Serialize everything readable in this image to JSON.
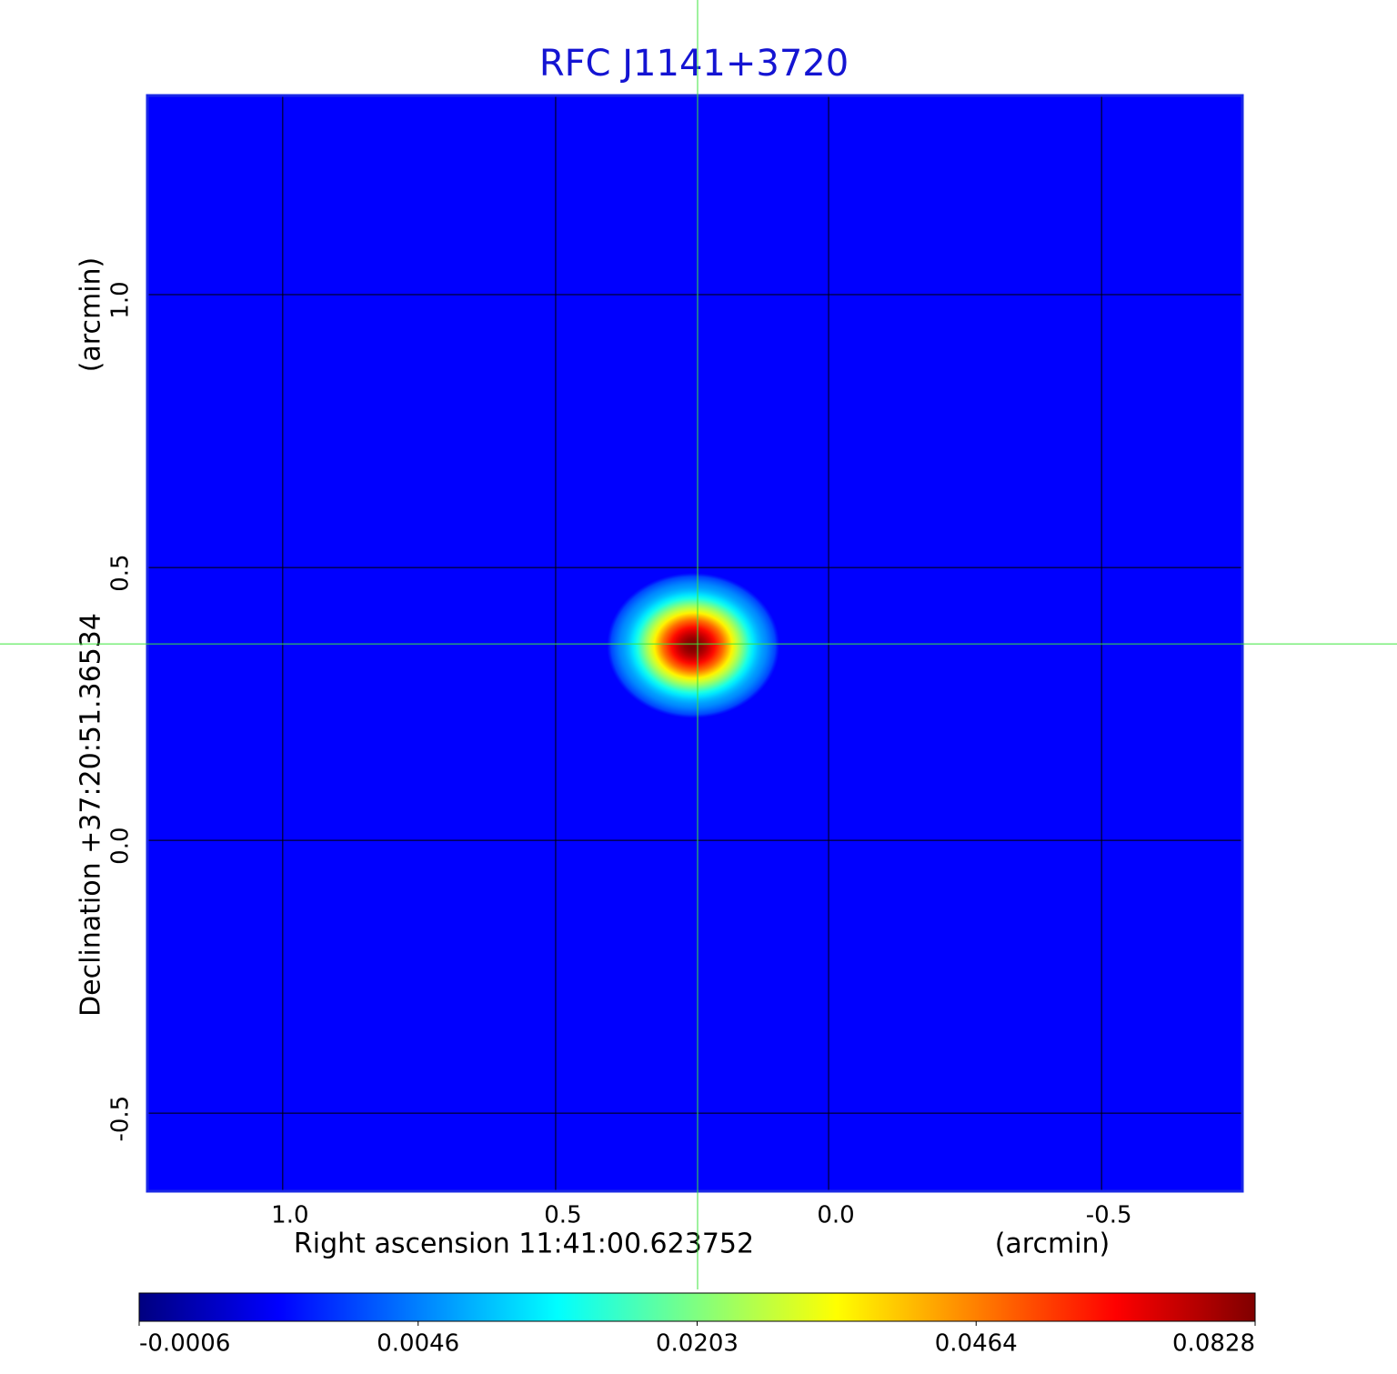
{
  "chart_data": {
    "type": "image",
    "title": "RFC J1141+3720",
    "xlabel": "Right ascension  11:41:00.623752",
    "xunit": "(arcmin)",
    "ylabel": "Declination  +37:20:51.36534",
    "yunit": "(arcmin)",
    "xlim": [
      1.248,
      -0.758
    ],
    "ylim": [
      -0.643,
      1.365
    ],
    "xticks": [
      {
        "value": 1,
        "label": "1.0"
      },
      0.5,
      {
        "value": 0,
        "label": "0.0"
      },
      -0.5
    ],
    "yticks": [
      -0.5,
      {
        "value": 0,
        "label": "0.0"
      },
      0.5,
      {
        "value": 1,
        "label": "1.0"
      }
    ],
    "grid": true,
    "background": 0.002,
    "source": {
      "x": 0.248,
      "y": 0.357,
      "peak": 0.0828
    },
    "crosshair": {
      "x": 0.24,
      "y": 0.36
    },
    "colorbar_ticks": [
      -0.0006,
      0.0046,
      0.0203,
      0.0464,
      0.0828
    ]
  }
}
